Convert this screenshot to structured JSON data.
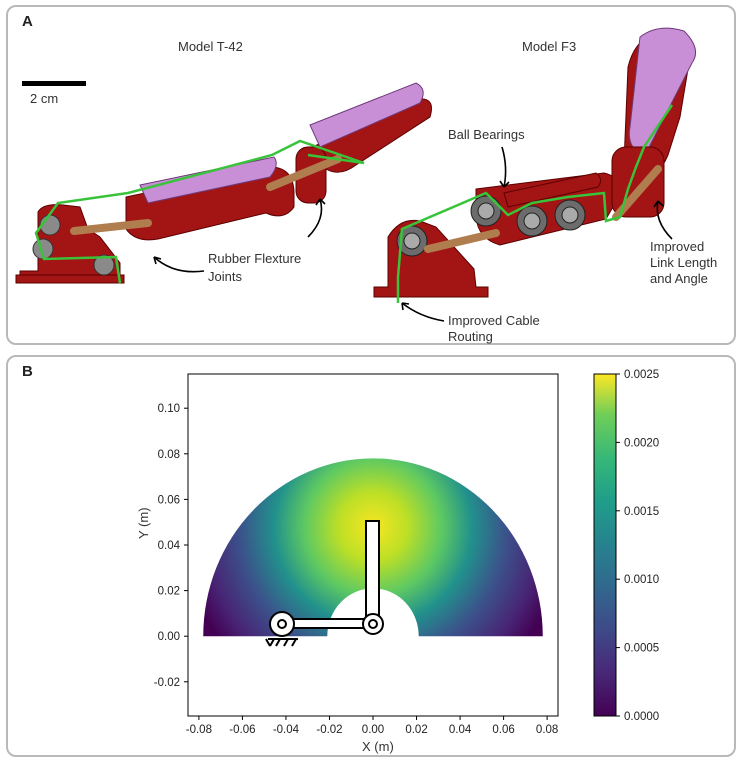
{
  "panel_a": {
    "label": "A",
    "model_left": "Model T-42",
    "model_right": "Model F3",
    "scale_bar": "2 cm",
    "callouts": {
      "flexure_1": "Rubber Flexture",
      "flexure_2": "Joints",
      "bearings": "Ball Bearings",
      "cable_1": "Improved Cable",
      "cable_2": "Routing",
      "link_1": "Improved",
      "link_2": "Link Length",
      "link_3": "and Angle"
    },
    "colors": {
      "body": "#a31414",
      "pad": "#c98fd6",
      "cable": "#39c33a",
      "link": "#b07d4e",
      "bearing": "#6c6c6c"
    }
  },
  "panel_b": {
    "label": "B",
    "chart_data": {
      "type": "heatmap",
      "xlabel": "X (m)",
      "ylabel": "Y (m)",
      "xlim": [
        -0.085,
        0.085
      ],
      "ylim": [
        -0.035,
        0.115
      ],
      "xticks": [
        "-0.08",
        "-0.06",
        "-0.04",
        "-0.02",
        "0.00",
        "0.02",
        "0.04",
        "0.06",
        "0.08"
      ],
      "yticks": [
        "-0.02",
        "0.00",
        "0.02",
        "0.04",
        "0.06",
        "0.08",
        "0.10"
      ],
      "colorbar_ticks": [
        "0.0000",
        "0.0005",
        "0.0010",
        "0.0015",
        "0.0020",
        "0.0025"
      ],
      "colorbar_range": [
        0,
        0.0025
      ],
      "workspace": {
        "outer_radius": 0.078,
        "inner_radius": 0.021,
        "peak_center": [
          0.0,
          0.048
        ]
      },
      "colormap": "viridis"
    }
  }
}
